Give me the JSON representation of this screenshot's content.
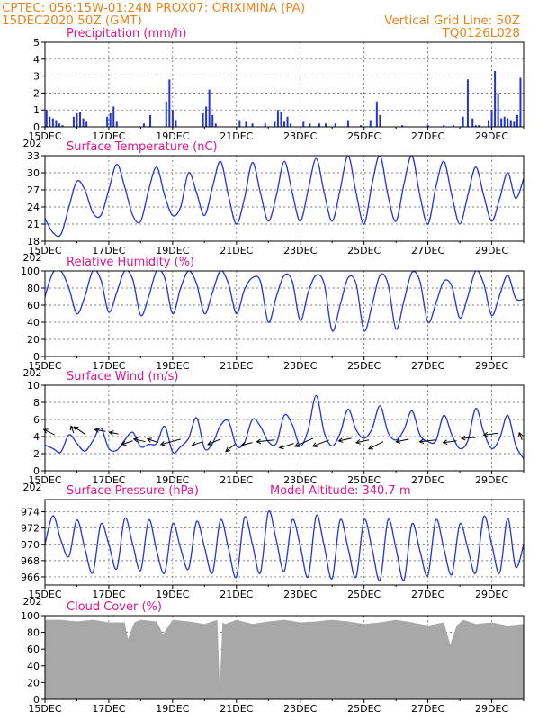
{
  "header": {
    "line1_left": "CPTEC:   056:15W-01:24N   PROX07: ORIXIMINA (PA)",
    "line2_left": "15DEC2020 50Z (GMT)",
    "line2_right": "Vertical Grid Line: 50Z",
    "line3_right": "TQ0126L028"
  },
  "x_axis": {
    "tick_labels": [
      "15DEC",
      "17DEC",
      "19DEC",
      "21DEC",
      "23DEC",
      "25DEC",
      "27DEC",
      "29DEC"
    ],
    "stub_label": "202"
  },
  "colors": {
    "series": "#2233dd",
    "header": "#e8841a",
    "title": "#e0168c",
    "cloud": "#a8a8a8"
  },
  "chart_data": [
    {
      "type": "bar",
      "title": "Precipitation (mm/h)",
      "ylim": [
        0,
        5
      ],
      "yticks": [
        0,
        1,
        2,
        3,
        4,
        5
      ],
      "x_days": [
        0,
        15
      ],
      "x": [
        0.05,
        0.15,
        0.25,
        0.35,
        0.45,
        0.55,
        0.9,
        1.0,
        1.1,
        1.2,
        1.3,
        1.95,
        2.05,
        2.15,
        2.25,
        3.1,
        3.3,
        3.8,
        3.9,
        4.0,
        4.1,
        4.95,
        5.05,
        5.15,
        5.25,
        5.35,
        6.1,
        6.3,
        6.5,
        6.9,
        7.2,
        7.3,
        7.4,
        7.5,
        7.6,
        7.7,
        8.1,
        8.3,
        8.6,
        8.8,
        9.1,
        9.5,
        9.9,
        10.2,
        10.4,
        10.5,
        11.2,
        12.0,
        12.5,
        12.8,
        13.1,
        13.25,
        13.4,
        13.5,
        13.6,
        13.9,
        14.0,
        14.1,
        14.2,
        14.3,
        14.4,
        14.5,
        14.6,
        14.7,
        14.8,
        14.9
      ],
      "values": [
        1.0,
        0.6,
        0.5,
        0.4,
        0.2,
        0.1,
        0.6,
        0.8,
        0.9,
        0.5,
        0.3,
        0.6,
        0.8,
        1.2,
        0.3,
        0.2,
        0.7,
        1.5,
        2.8,
        1.0,
        0.4,
        0.8,
        1.2,
        2.2,
        0.7,
        0.2,
        0.4,
        0.3,
        0.2,
        0.2,
        0.3,
        1.0,
        0.9,
        0.3,
        0.6,
        0.2,
        0.3,
        0.2,
        0.2,
        0.2,
        0.2,
        0.4,
        0.1,
        0.4,
        1.5,
        0.7,
        0.1,
        0.1,
        0.1,
        0.1,
        0.6,
        2.8,
        0.5,
        0.1,
        0.1,
        0.4,
        1.0,
        3.3,
        2.0,
        0.5,
        0.6,
        0.5,
        0.4,
        0.3,
        0.7,
        2.9
      ]
    },
    {
      "type": "line",
      "title": "Surface Temperature (nC)",
      "ylim": [
        18,
        33
      ],
      "yticks": [
        18,
        21,
        24,
        27,
        30,
        33
      ],
      "x_days": [
        0,
        15
      ],
      "x": [
        0,
        0.25,
        0.5,
        0.75,
        1.0,
        1.25,
        1.5,
        1.75,
        2.0,
        2.25,
        2.5,
        2.75,
        3.0,
        3.25,
        3.5,
        3.75,
        4.0,
        4.25,
        4.5,
        4.75,
        5.0,
        5.25,
        5.5,
        5.75,
        6.0,
        6.25,
        6.5,
        6.75,
        7.0,
        7.25,
        7.5,
        7.75,
        8.0,
        8.25,
        8.5,
        8.75,
        9.0,
        9.25,
        9.5,
        9.75,
        10.0,
        10.25,
        10.5,
        10.75,
        11.0,
        11.25,
        11.5,
        11.75,
        12.0,
        12.25,
        12.5,
        12.75,
        13.0,
        13.25,
        13.5,
        13.75,
        14.0,
        14.25,
        14.5,
        14.75,
        15.0
      ],
      "values": [
        22,
        19.5,
        19.2,
        24,
        28.5,
        27,
        23,
        22.5,
        27,
        31.5,
        27.5,
        22.5,
        21.5,
        27,
        31,
        26,
        22.5,
        24,
        30,
        26.5,
        22.5,
        27.5,
        32,
        26,
        21,
        25.5,
        31.8,
        26.5,
        21.5,
        26,
        32,
        26.5,
        21.5,
        27,
        32.5,
        26.5,
        21.5,
        27,
        33,
        26.5,
        21,
        28,
        33,
        26,
        21.5,
        28,
        33,
        26,
        21,
        27.5,
        32,
        26,
        21,
        26,
        31,
        26,
        21.5,
        25.5,
        30,
        25.5,
        29
      ]
    },
    {
      "type": "line",
      "title": "Relative Humidity (%)",
      "ylim": [
        0,
        100
      ],
      "yticks": [
        0,
        20,
        40,
        60,
        80,
        100
      ],
      "x_days": [
        0,
        15
      ],
      "x": [
        0,
        0.25,
        0.5,
        0.75,
        1.0,
        1.25,
        1.5,
        1.75,
        2.0,
        2.25,
        2.5,
        2.75,
        3.0,
        3.25,
        3.5,
        3.75,
        4.0,
        4.25,
        4.5,
        4.75,
        5.0,
        5.25,
        5.5,
        5.75,
        6.0,
        6.25,
        6.5,
        6.75,
        7.0,
        7.25,
        7.5,
        7.75,
        8.0,
        8.25,
        8.5,
        8.75,
        9.0,
        9.25,
        9.5,
        9.75,
        10.0,
        10.25,
        10.5,
        10.75,
        11.0,
        11.25,
        11.5,
        11.75,
        12.0,
        12.25,
        12.5,
        12.75,
        13.0,
        13.25,
        13.5,
        13.75,
        14.0,
        14.25,
        14.5,
        14.75,
        15.0
      ],
      "values": [
        70,
        98,
        100,
        80,
        50,
        70,
        100,
        90,
        52,
        75,
        100,
        90,
        48,
        70,
        100,
        92,
        50,
        80,
        100,
        85,
        50,
        75,
        100,
        85,
        50,
        78,
        92,
        88,
        40,
        70,
        95,
        88,
        42,
        75,
        95,
        85,
        30,
        60,
        92,
        85,
        30,
        60,
        95,
        85,
        32,
        65,
        98,
        88,
        40,
        62,
        88,
        82,
        45,
        70,
        100,
        85,
        48,
        72,
        95,
        68,
        67
      ]
    },
    {
      "type": "line",
      "title": "Surface Wind (m/s)",
      "ylim": [
        0,
        10
      ],
      "yticks": [
        0,
        2,
        4,
        6,
        8,
        10
      ],
      "x_days": [
        0,
        15
      ],
      "x": [
        0,
        0.25,
        0.5,
        0.75,
        1.0,
        1.25,
        1.5,
        1.75,
        2.0,
        2.25,
        2.5,
        2.75,
        3.0,
        3.25,
        3.5,
        3.75,
        4.0,
        4.25,
        4.5,
        4.75,
        5.0,
        5.25,
        5.5,
        5.75,
        6.0,
        6.25,
        6.5,
        6.75,
        7.0,
        7.25,
        7.5,
        7.75,
        8.0,
        8.25,
        8.5,
        8.75,
        9.0,
        9.25,
        9.5,
        9.75,
        10.0,
        10.25,
        10.5,
        10.75,
        11.0,
        11.25,
        11.5,
        11.75,
        12.0,
        12.25,
        12.5,
        12.75,
        13.0,
        13.25,
        13.5,
        13.75,
        14.0,
        14.25,
        14.5,
        14.75,
        15.0
      ],
      "values": [
        3,
        2.6,
        2.2,
        4.2,
        3.2,
        2.3,
        3.5,
        5,
        2.6,
        2.4,
        3.6,
        4.5,
        2.8,
        3.1,
        3.2,
        5.2,
        2.2,
        2.8,
        3.8,
        6.2,
        2.6,
        3.2,
        5.3,
        5.8,
        2.9,
        3.3,
        6,
        5.2,
        3.4,
        3.2,
        6.5,
        5.4,
        2.9,
        4.8,
        8.8,
        4.5,
        2.9,
        4.4,
        7.2,
        4.8,
        3.8,
        4.9,
        7.6,
        4.5,
        3.6,
        4.8,
        7,
        4.2,
        3.4,
        3.5,
        6.5,
        4.2,
        2.6,
        3.5,
        7.3,
        4.5,
        2.6,
        3.8,
        6.5,
        3,
        1.4
      ],
      "arrows": [
        [
          0.3,
          4.2,
          -12,
          -6
        ],
        [
          0.9,
          4.4,
          -3,
          -8
        ],
        [
          1.25,
          4.3,
          -12,
          -8
        ],
        [
          1.9,
          4.6,
          -12,
          -2
        ],
        [
          2.3,
          4.3,
          -10,
          -2
        ],
        [
          2.75,
          3.5,
          -12,
          4
        ],
        [
          3.15,
          3.4,
          -13,
          -3
        ],
        [
          3.55,
          3.3,
          -12,
          -4
        ],
        [
          4.25,
          3.7,
          -22,
          6
        ],
        [
          4.95,
          3.4,
          -12,
          4
        ],
        [
          5.5,
          3.7,
          -14,
          6
        ],
        [
          5.95,
          3.1,
          -10,
          8
        ],
        [
          6.5,
          3.3,
          -12,
          3
        ],
        [
          7.2,
          3.6,
          -20,
          2
        ],
        [
          7.8,
          3.2,
          -16,
          5
        ],
        [
          8.4,
          3.8,
          -20,
          9
        ],
        [
          8.9,
          3.6,
          -18,
          7
        ],
        [
          9.6,
          3.8,
          -14,
          3
        ],
        [
          10.15,
          3.6,
          -14,
          3
        ],
        [
          10.6,
          3.4,
          -16,
          8
        ],
        [
          11.4,
          3.7,
          -14,
          3
        ],
        [
          12.25,
          3.6,
          -18,
          2
        ],
        [
          12.9,
          3.5,
          -15,
          2
        ],
        [
          13.5,
          3.9,
          -16,
          1
        ],
        [
          14.2,
          4.4,
          -16,
          2
        ],
        [
          14.95,
          3.6,
          -3,
          -8
        ]
      ]
    },
    {
      "type": "line",
      "title": "Surface Pressure (hPa)",
      "annotation": "Model Altitude: 340.7  m",
      "ylim": [
        965,
        975.5
      ],
      "yticks": [
        966,
        968,
        970,
        972,
        974
      ],
      "x_days": [
        0,
        15
      ],
      "x": [
        0,
        0.25,
        0.5,
        0.75,
        1.0,
        1.25,
        1.5,
        1.75,
        2.0,
        2.25,
        2.5,
        2.75,
        3.0,
        3.25,
        3.5,
        3.75,
        4.0,
        4.25,
        4.5,
        4.75,
        5.0,
        5.25,
        5.5,
        5.75,
        6.0,
        6.25,
        6.5,
        6.75,
        7.0,
        7.25,
        7.5,
        7.75,
        8.0,
        8.25,
        8.5,
        8.75,
        9.0,
        9.25,
        9.5,
        9.75,
        10.0,
        10.25,
        10.5,
        10.75,
        11.0,
        11.25,
        11.5,
        11.75,
        12.0,
        12.25,
        12.5,
        12.75,
        13.0,
        13.25,
        13.5,
        13.75,
        14.0,
        14.25,
        14.5,
        14.75,
        15.0
      ],
      "values": [
        970,
        973.5,
        970.5,
        968.5,
        973,
        969.5,
        966.5,
        972.5,
        970,
        967,
        973.2,
        970,
        966.8,
        973,
        969.2,
        966.5,
        972.5,
        969.5,
        967,
        972.8,
        969.6,
        966.5,
        973,
        969.5,
        966,
        973.3,
        970,
        966.5,
        974,
        970.5,
        966.7,
        973,
        969.8,
        966,
        973.5,
        969.8,
        965.8,
        973,
        969.5,
        966,
        973,
        969.5,
        965.6,
        973,
        969.5,
        965.6,
        972.5,
        969.2,
        966.2,
        973,
        969.5,
        966.3,
        972.5,
        969.5,
        966.5,
        973.4,
        970,
        966.5,
        973.2,
        967.2,
        970
      ]
    },
    {
      "type": "area",
      "title": "Cloud Cover (%)",
      "ylim": [
        0,
        100
      ],
      "yticks": [
        0,
        20,
        40,
        60,
        80,
        100
      ],
      "x_days": [
        0,
        15
      ],
      "x": [
        0,
        0.5,
        1.0,
        1.5,
        2.0,
        2.5,
        2.6,
        2.8,
        3.0,
        3.5,
        3.7,
        4.0,
        4.5,
        5.0,
        5.4,
        5.48,
        5.56,
        5.65,
        6.0,
        6.5,
        7.0,
        7.5,
        8.0,
        8.5,
        9.0,
        9.5,
        10.0,
        10.5,
        11.0,
        11.5,
        12.0,
        12.5,
        12.7,
        12.9,
        13.1,
        13.5,
        14.0,
        14.5,
        15.0
      ],
      "values": [
        95,
        95,
        93,
        95,
        92,
        92,
        72,
        92,
        95,
        93,
        78,
        95,
        93,
        90,
        95,
        12,
        92,
        90,
        95,
        90,
        93,
        95,
        92,
        93,
        95,
        93,
        90,
        92,
        95,
        92,
        88,
        92,
        65,
        88,
        95,
        90,
        92,
        88,
        90
      ]
    }
  ]
}
